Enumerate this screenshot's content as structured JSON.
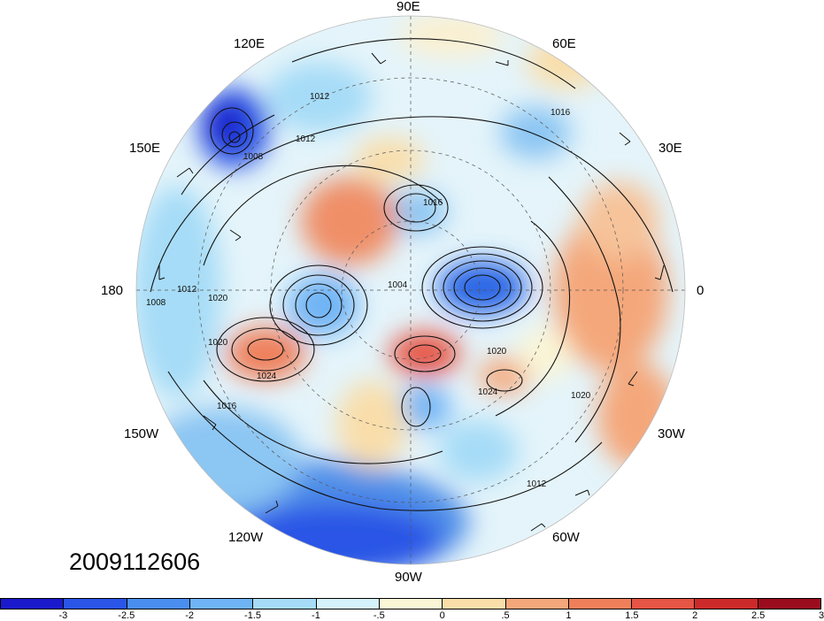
{
  "timestamp": "2009112606",
  "longitude_labels": {
    "e90": "90E",
    "e60": "60E",
    "e30": "30E",
    "deg0": "0",
    "w30": "30W",
    "w60": "60W",
    "w90": "90W",
    "w120": "120W",
    "w150": "150W",
    "deg180": "180",
    "e150": "150E",
    "e120": "120E"
  },
  "contour_labels": [
    "1012",
    "1016",
    "1008",
    "1012",
    "1016",
    "1020",
    "1024",
    "1020",
    "1012",
    "1008",
    "1004",
    "1020",
    "1024",
    "1020",
    "1016",
    "1012"
  ],
  "colorbar": {
    "colors": [
      "#1a1acc",
      "#2a55e6",
      "#4a8ef0",
      "#6fb4f5",
      "#a6dcf7",
      "#d5f1fb",
      "#fbf6d6",
      "#f9deaa",
      "#f4a77a",
      "#ef7f5a",
      "#e65545",
      "#cc2a2a",
      "#9b0d1e"
    ],
    "ticks": [
      "-3",
      "-2.5",
      "-2",
      "-1.5",
      "-1",
      "-.5",
      "0",
      ".5",
      "1",
      "1.5",
      "2",
      "2.5",
      "3"
    ]
  }
}
